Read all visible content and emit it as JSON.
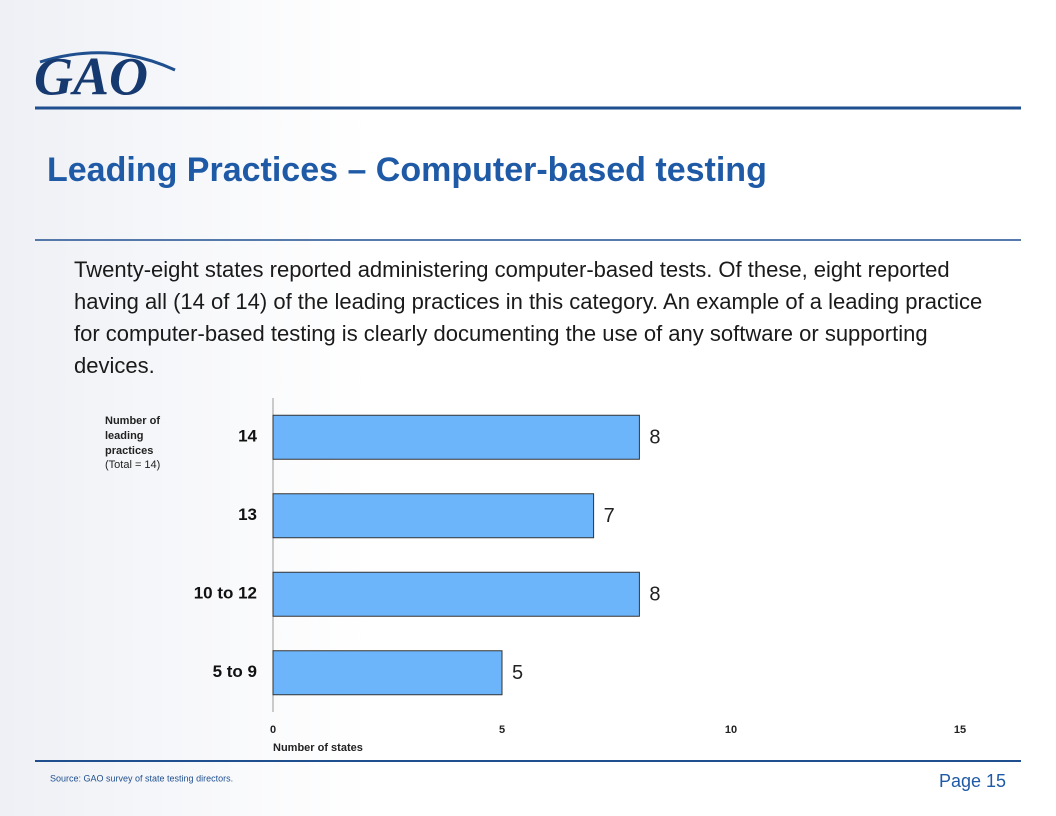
{
  "logo": "GAO",
  "title": "Leading Practices – Computer-based testing",
  "body": "Twenty-eight states reported administering computer-based tests. Of these, eight reported having all (14 of 14) of the leading practices in this category. An example of a leading practice for computer-based testing is clearly documenting the use of any software or supporting devices.",
  "source": "Source: GAO survey of state testing directors.",
  "page": "Page 15",
  "chart_data": {
    "type": "bar",
    "orientation": "horizontal",
    "y_label": "Number of leading practices",
    "y_label_note": "(Total = 14)",
    "x_label": "Number of states",
    "categories": [
      "14",
      "13",
      "10 to 12",
      "5 to 9"
    ],
    "values": [
      8,
      7,
      8,
      5
    ],
    "color": "#6db5fb",
    "xlim": [
      0,
      15
    ],
    "xticks": [
      0,
      5,
      10,
      15
    ]
  }
}
